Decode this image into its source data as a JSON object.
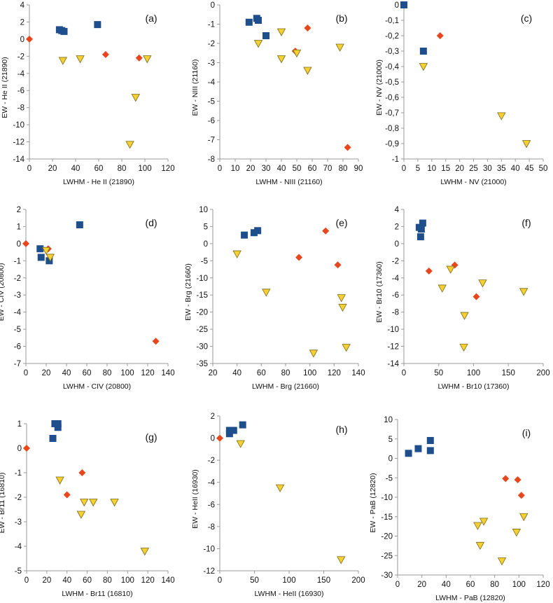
{
  "figure": {
    "colors": {
      "square": "#1f4e8c",
      "diamond": "#e8461c",
      "triangle": "#f5d033",
      "triangle_edge": "#7a6a1a",
      "axis": "#9a9a9a",
      "grid": "#d9d9d9"
    }
  },
  "chart_data": [
    {
      "panel": "(a)",
      "type": "scatter",
      "xlabel": "LWHM - He II (21890)",
      "ylabel": "EW - He II (21890)",
      "xlim": [
        0,
        120
      ],
      "ylim": [
        -14,
        4
      ],
      "xticks": [
        "0",
        "20",
        "40",
        "60",
        "80",
        "100",
        "120"
      ],
      "yticks": [
        "4",
        "2",
        "0",
        "-2",
        "-4",
        "-6",
        "-8",
        "-10",
        "-12",
        "-14"
      ],
      "series": [
        {
          "name": "squares",
          "marker": "square",
          "points": [
            [
              26,
              1.1
            ],
            [
              28,
              1.0
            ],
            [
              30,
              0.9
            ],
            [
              59,
              1.7
            ]
          ]
        },
        {
          "name": "diamonds",
          "marker": "diamond",
          "points": [
            [
              0,
              0
            ],
            [
              66,
              -1.8
            ],
            [
              95,
              -2.2
            ]
          ]
        },
        {
          "name": "triangles",
          "marker": "triangle",
          "points": [
            [
              29,
              -2.5
            ],
            [
              44,
              -2.3
            ],
            [
              102,
              -2.3
            ],
            [
              92,
              -6.8
            ],
            [
              87,
              -12.3
            ]
          ]
        }
      ]
    },
    {
      "panel": "(b)",
      "type": "scatter",
      "xlabel": "LWHM - NIII (21160)",
      "ylabel": "EW - NIII (21160)",
      "xlim": [
        0,
        90
      ],
      "ylim": [
        -8,
        0
      ],
      "xticks": [
        "0",
        "10",
        "20",
        "30",
        "40",
        "50",
        "60",
        "70",
        "80",
        "90"
      ],
      "yticks": [
        "0",
        "-1",
        "-2",
        "-3",
        "-4",
        "-5",
        "-6",
        "-7",
        "-8"
      ],
      "series": [
        {
          "name": "squares",
          "marker": "square",
          "points": [
            [
              19,
              -0.9
            ],
            [
              24,
              -0.7
            ],
            [
              25,
              -0.8
            ],
            [
              30,
              -1.6
            ]
          ]
        },
        {
          "name": "diamonds",
          "marker": "diamond",
          "points": [
            [
              57,
              -1.2
            ],
            [
              49,
              -2.4
            ],
            [
              83,
              -7.4
            ]
          ]
        },
        {
          "name": "triangles",
          "marker": "triangle",
          "points": [
            [
              25,
              -2.0
            ],
            [
              40,
              -1.4
            ],
            [
              40,
              -2.8
            ],
            [
              50,
              -2.5
            ],
            [
              57,
              -3.4
            ],
            [
              78,
              -2.2
            ]
          ]
        }
      ]
    },
    {
      "panel": "(c)",
      "type": "scatter",
      "xlabel": "LWHM - NV (21000)",
      "ylabel": "EW - NV (21000)",
      "xlim": [
        0,
        50
      ],
      "ylim": [
        -1,
        0
      ],
      "xticks": [
        "0",
        "5",
        "10",
        "15",
        "20",
        "25",
        "30",
        "35",
        "40",
        "45",
        "50"
      ],
      "yticks": [
        "0",
        "-0,1",
        "-0,2",
        "-0,3",
        "-0,4",
        "-0,5",
        "-0,6",
        "-0,7",
        "-0,8",
        "-0,9",
        "-1"
      ],
      "series": [
        {
          "name": "squares",
          "marker": "square",
          "points": [
            [
              0,
              0
            ],
            [
              7,
              -0.3
            ]
          ]
        },
        {
          "name": "diamonds",
          "marker": "diamond",
          "points": [
            [
              13,
              -0.2
            ]
          ]
        },
        {
          "name": "triangles",
          "marker": "triangle",
          "points": [
            [
              7,
              -0.4
            ],
            [
              35,
              -0.72
            ],
            [
              44,
              -0.9
            ]
          ]
        }
      ]
    },
    {
      "panel": "(d)",
      "type": "scatter",
      "xlabel": "LWHM - CIV (20800)",
      "ylabel": "EW - CIV (20800)",
      "xlim": [
        0,
        140
      ],
      "ylim": [
        -7,
        2
      ],
      "xticks": [
        "0",
        "20",
        "40",
        "60",
        "80",
        "100",
        "120",
        "140"
      ],
      "yticks": [
        "2",
        "1",
        "0",
        "-1",
        "-2",
        "-3",
        "-4",
        "-5",
        "-6",
        "-7"
      ],
      "series": [
        {
          "name": "squares",
          "marker": "square",
          "points": [
            [
              53,
              1.1
            ],
            [
              14,
              -0.3
            ],
            [
              15,
              -0.8
            ],
            [
              23,
              -1.0
            ]
          ]
        },
        {
          "name": "diamonds",
          "marker": "diamond",
          "points": [
            [
              0,
              0
            ],
            [
              22,
              -0.3
            ],
            [
              128,
              -5.7
            ]
          ]
        },
        {
          "name": "triangles",
          "marker": "triangle",
          "points": [
            [
              20,
              -0.4
            ],
            [
              24,
              -0.8
            ]
          ]
        }
      ]
    },
    {
      "panel": "(e)",
      "type": "scatter",
      "xlabel": "LWHM - Brg (21660)",
      "ylabel": "EW - Brg (21660)",
      "xlim": [
        20,
        140
      ],
      "ylim": [
        -35,
        10
      ],
      "xticks": [
        "20",
        "40",
        "60",
        "80",
        "100",
        "120",
        "140"
      ],
      "yticks": [
        "10",
        "5",
        "0",
        "-5",
        "-10",
        "-15",
        "-20",
        "-25",
        "-30",
        "-35"
      ],
      "series": [
        {
          "name": "squares",
          "marker": "square",
          "points": [
            [
              46,
              2.5
            ],
            [
              54,
              3.2
            ],
            [
              57,
              3.8
            ]
          ]
        },
        {
          "name": "diamonds",
          "marker": "diamond",
          "points": [
            [
              113,
              3.7
            ],
            [
              91,
              -4.0
            ],
            [
              123,
              -6.2
            ]
          ]
        },
        {
          "name": "triangles",
          "marker": "triangle",
          "points": [
            [
              40,
              -3.0
            ],
            [
              64,
              -14.2
            ],
            [
              126,
              -15.8
            ],
            [
              127,
              -18.6
            ],
            [
              103,
              -32.0
            ],
            [
              130,
              -30.3
            ]
          ]
        }
      ]
    },
    {
      "panel": "(f)",
      "type": "scatter",
      "xlabel": "LWHM - Br10 (17360)",
      "ylabel": "EW - Br10 (17360)",
      "xlim": [
        0,
        200
      ],
      "ylim": [
        -14,
        4
      ],
      "xticks": [
        "0",
        "50",
        "100",
        "150",
        "200"
      ],
      "yticks": [
        "4",
        "2",
        "0",
        "-2",
        "-4",
        "-6",
        "-8",
        "-10",
        "-12",
        "-14"
      ],
      "series": [
        {
          "name": "squares",
          "marker": "square",
          "points": [
            [
              22,
              1.9
            ],
            [
              27,
              2.4
            ],
            [
              25,
              1.7
            ],
            [
              24,
              0.8
            ]
          ]
        },
        {
          "name": "diamonds",
          "marker": "diamond",
          "points": [
            [
              36,
              -3.2
            ],
            [
              73,
              -2.5
            ],
            [
              104,
              -6.2
            ]
          ]
        },
        {
          "name": "triangles",
          "marker": "triangle",
          "points": [
            [
              67,
              -3.0
            ],
            [
              55,
              -5.2
            ],
            [
              113,
              -4.6
            ],
            [
              172,
              -5.6
            ],
            [
              87,
              -8.4
            ],
            [
              86,
              -12.1
            ]
          ]
        }
      ]
    },
    {
      "panel": "(g)",
      "type": "scatter",
      "xlabel": "LWHM - Br11 (16810)",
      "ylabel": "EW - Br11 (16810)",
      "xlim": [
        0,
        140
      ],
      "ylim": [
        -5,
        1
      ],
      "xticks": [
        "0",
        "20",
        "40",
        "60",
        "80",
        "100",
        "120",
        "140"
      ],
      "yticks": [
        "1",
        "0",
        "-1",
        "-2",
        "-3",
        "-4",
        "-5"
      ],
      "series": [
        {
          "name": "squares",
          "marker": "square",
          "points": [
            [
              28,
              1.0
            ],
            [
              31,
              1.0
            ],
            [
              31,
              0.85
            ],
            [
              26,
              0.4
            ]
          ]
        },
        {
          "name": "diamonds",
          "marker": "diamond",
          "points": [
            [
              0,
              0
            ],
            [
              55,
              -1.0
            ],
            [
              40,
              -1.9
            ]
          ]
        },
        {
          "name": "triangles",
          "marker": "triangle",
          "points": [
            [
              33,
              -1.3
            ],
            [
              57,
              -2.2
            ],
            [
              66,
              -2.2
            ],
            [
              87,
              -2.2
            ],
            [
              54,
              -2.7
            ],
            [
              117,
              -4.2
            ]
          ]
        }
      ]
    },
    {
      "panel": "(h)",
      "type": "scatter",
      "xlabel": "LWHM - HeII (16930)",
      "ylabel": "EW - HeII (16930)",
      "xlim": [
        0,
        200
      ],
      "ylim": [
        -12,
        2
      ],
      "xticks": [
        "0",
        "50",
        "100",
        "150",
        "200"
      ],
      "yticks": [
        "2",
        "0",
        "-2",
        "-4",
        "-6",
        "-8",
        "-10",
        "-12"
      ],
      "series": [
        {
          "name": "squares",
          "marker": "square",
          "points": [
            [
              14,
              0.7
            ],
            [
              20,
              0.7
            ],
            [
              33,
              1.2
            ],
            [
              14,
              0.4
            ]
          ]
        },
        {
          "name": "diamonds",
          "marker": "diamond",
          "points": [
            [
              0,
              0
            ]
          ]
        },
        {
          "name": "triangles",
          "marker": "triangle",
          "points": [
            [
              30,
              -0.5
            ],
            [
              87,
              -4.5
            ],
            [
              175,
              -11.0
            ]
          ]
        }
      ]
    },
    {
      "panel": "(i)",
      "type": "scatter",
      "xlabel": "LWHM - PaB (12820)",
      "ylabel": "EW - PaB (12820)",
      "xlim": [
        0,
        120
      ],
      "ylim": [
        -30,
        10
      ],
      "xticks": [
        "0",
        "20",
        "40",
        "60",
        "80",
        "100",
        "120"
      ],
      "yticks": [
        "10",
        "5",
        "0",
        "-5",
        "-10",
        "-15",
        "-20",
        "-25",
        "-30"
      ],
      "series": [
        {
          "name": "squares",
          "marker": "square",
          "points": [
            [
              9,
              1.3
            ],
            [
              17,
              2.5
            ],
            [
              27,
              4.6
            ],
            [
              27,
              2.0
            ]
          ]
        },
        {
          "name": "diamonds",
          "marker": "diamond",
          "points": [
            [
              89,
              -5.2
            ],
            [
              99,
              -5.5
            ],
            [
              102,
              -9.5
            ]
          ]
        },
        {
          "name": "triangles",
          "marker": "triangle",
          "points": [
            [
              66,
              -17.3
            ],
            [
              71,
              -16.2
            ],
            [
              68,
              -22.4
            ],
            [
              98,
              -19.0
            ],
            [
              104,
              -15.0
            ],
            [
              86,
              -26.4
            ]
          ]
        }
      ]
    }
  ]
}
